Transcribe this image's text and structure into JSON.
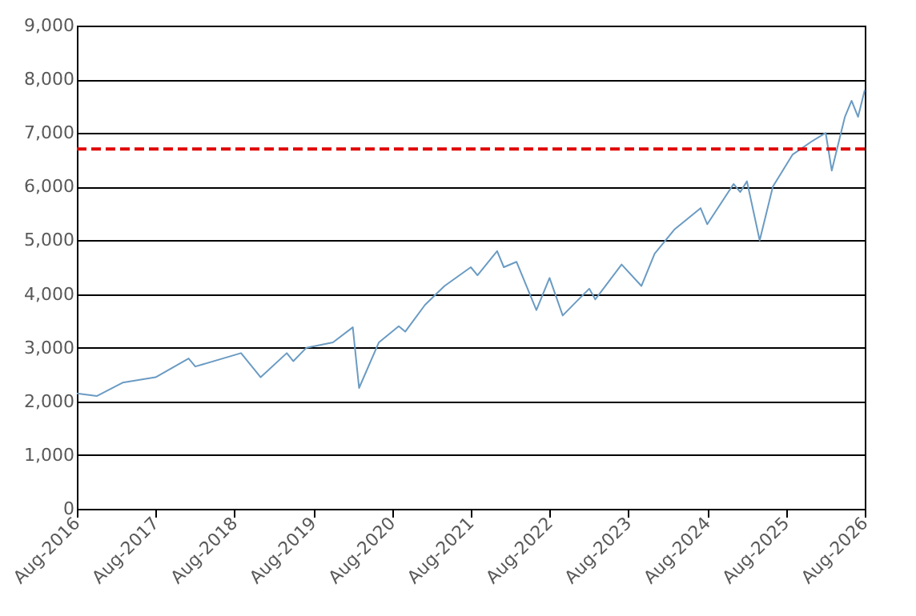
{
  "chart_data": {
    "type": "line",
    "x": [
      "2016-08",
      "2016-11",
      "2017-03",
      "2017-08",
      "2018-01",
      "2018-02",
      "2018-09",
      "2018-12",
      "2019-04",
      "2019-05",
      "2019-07",
      "2019-11",
      "2020-02",
      "2020-03",
      "2020-06",
      "2020-09",
      "2020-10",
      "2021-01",
      "2021-04",
      "2021-08",
      "2021-09",
      "2021-12",
      "2022-01",
      "2022-03",
      "2022-06",
      "2022-08",
      "2022-10",
      "2022-12",
      "2023-02",
      "2023-03",
      "2023-07",
      "2023-10",
      "2023-12",
      "2024-03",
      "2024-07",
      "2024-08",
      "2024-12",
      "2025-01",
      "2025-02",
      "2025-04",
      "2025-06",
      "2025-09",
      "2025-12",
      "2026-02",
      "2026-03",
      "2026-05",
      "2026-06",
      "2026-07",
      "2026-08"
    ],
    "series": [
      {
        "color": "#6a9bc3",
        "values": [
          2150,
          2100,
          2350,
          2450,
          2800,
          2650,
          2900,
          2450,
          2900,
          2750,
          3000,
          3100,
          3380,
          2250,
          3100,
          3400,
          3300,
          3800,
          4150,
          4500,
          4350,
          4800,
          4500,
          4600,
          3700,
          4300,
          3600,
          3850,
          4100,
          3900,
          4550,
          4150,
          4750,
          5200,
          5600,
          5300,
          6050,
          5900,
          6100,
          5000,
          6000,
          6600,
          6850,
          7000,
          6300,
          7300,
          7600,
          7300,
          7800
        ]
      }
    ],
    "xlim": [
      "2016-08",
      "2026-08"
    ],
    "xticks": [
      {
        "value": "2016-08",
        "label": "Aug-2016"
      },
      {
        "value": "2017-08",
        "label": "Aug-2017"
      },
      {
        "value": "2018-08",
        "label": "Aug-2018"
      },
      {
        "value": "2019-08",
        "label": "Aug-2019"
      },
      {
        "value": "2020-08",
        "label": "Aug-2020"
      },
      {
        "value": "2021-08",
        "label": "Aug-2021"
      },
      {
        "value": "2022-08",
        "label": "Aug-2022"
      },
      {
        "value": "2023-08",
        "label": "Aug-2023"
      },
      {
        "value": "2024-08",
        "label": "Aug-2024"
      },
      {
        "value": "2025-08",
        "label": "Aug-2025"
      },
      {
        "value": "2026-08",
        "label": "Aug-2026"
      }
    ],
    "ylim": [
      0,
      9000
    ],
    "yticks": [
      {
        "value": 0,
        "label": "0"
      },
      {
        "value": 1000,
        "label": "1,000"
      },
      {
        "value": 2000,
        "label": "2,000"
      },
      {
        "value": 3000,
        "label": "3,000"
      },
      {
        "value": 4000,
        "label": "4,000"
      },
      {
        "value": 5000,
        "label": "5,000"
      },
      {
        "value": 6000,
        "label": "6,000"
      },
      {
        "value": 7000,
        "label": "7,000"
      },
      {
        "value": 8000,
        "label": "8,000"
      },
      {
        "value": 9000,
        "label": "9,000"
      }
    ],
    "ref_lines": [
      {
        "axis": "y",
        "value": 6700,
        "color": "#e00000",
        "line_style": "dashed"
      }
    ],
    "grid": "y",
    "marker": "none",
    "line_style": "solid"
  }
}
